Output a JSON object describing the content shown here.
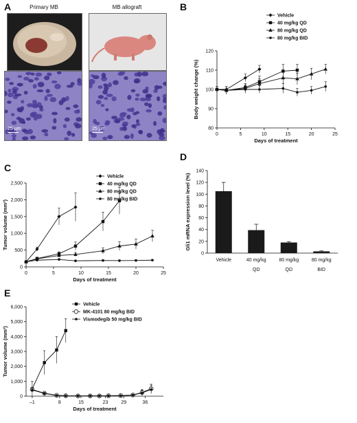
{
  "panel_labels": {
    "a": "A",
    "b": "B",
    "c": "C",
    "d": "D",
    "e": "E"
  },
  "panel_a": {
    "left_caption": "Primary MB",
    "right_caption": "MB allograft",
    "scale_left": "25 μm",
    "scale_right": "25 μm"
  },
  "colors": {
    "bg": "#ffffff",
    "ink": "#111111",
    "bars": "#1a1a1a",
    "histo": "#8e83c4"
  },
  "chart_data": [
    {
      "id": "B",
      "type": "line",
      "xlabel": "Days of treatment",
      "ylabel": "Body weight change (%)",
      "xlim": [
        0,
        25
      ],
      "ylim": [
        80,
        120
      ],
      "xticks": [
        0,
        5,
        10,
        15,
        20,
        25
      ],
      "yticks": [
        80,
        90,
        100,
        110,
        120
      ],
      "legend_position": "top-right",
      "series": [
        {
          "name": "Vehicle",
          "marker": "diamond",
          "x": [
            0,
            2,
            6,
            9
          ],
          "y": [
            100,
            100,
            106,
            110.5
          ],
          "err": [
            1.5,
            1.5,
            2,
            2
          ]
        },
        {
          "name": "40 mg/kg QD",
          "marker": "square",
          "x": [
            0,
            2,
            6,
            9,
            14,
            17
          ],
          "y": [
            100,
            99.5,
            101,
            104,
            109.5,
            110
          ],
          "err": [
            1.5,
            2,
            2,
            3,
            3.5,
            3
          ]
        },
        {
          "name": "80 mg/kg QD",
          "marker": "triangle",
          "x": [
            0,
            2,
            6,
            9,
            14,
            17,
            20,
            23
          ],
          "y": [
            100,
            99.5,
            100.5,
            103,
            106,
            105.5,
            108,
            110.5
          ],
          "err": [
            1.5,
            2,
            2,
            2.5,
            3,
            3,
            3,
            2.5
          ]
        },
        {
          "name": "80 mg/kg  BID",
          "marker": "dot",
          "x": [
            0,
            2,
            6,
            9,
            14,
            17,
            20,
            23
          ],
          "y": [
            100,
            99.5,
            100,
            100,
            100.5,
            98.5,
            99.5,
            101.5
          ],
          "err": [
            1.5,
            2,
            2,
            2,
            2.5,
            2,
            2,
            2.5
          ]
        }
      ]
    },
    {
      "id": "C",
      "type": "line",
      "xlabel": "Days of treatment",
      "ylabel": "Tumor volume (mm³)",
      "xlim": [
        0,
        25
      ],
      "ylim": [
        0,
        2500
      ],
      "xticks": [
        0,
        5,
        10,
        15,
        20,
        25
      ],
      "yticks": [
        0,
        500,
        1000,
        1500,
        2000,
        2500
      ],
      "ytick_labels": [
        "0",
        "500",
        "1,000",
        "1,500",
        "2,000",
        "2,500"
      ],
      "legend_position": "top-right",
      "series": [
        {
          "name": "Vehicle",
          "marker": "diamond",
          "x": [
            0,
            2,
            6,
            9
          ],
          "y": [
            150,
            530,
            1500,
            1780
          ],
          "err": [
            20,
            60,
            250,
            420
          ]
        },
        {
          "name": "40 mg/kg QD",
          "marker": "square",
          "x": [
            0,
            2,
            6,
            9,
            14,
            17
          ],
          "y": [
            150,
            250,
            390,
            620,
            1350,
            1970
          ],
          "err": [
            20,
            40,
            60,
            120,
            280,
            400
          ]
        },
        {
          "name": "80 mg/kg QD",
          "marker": "triangle",
          "x": [
            0,
            2,
            6,
            9,
            14,
            17,
            20,
            23
          ],
          "y": [
            150,
            240,
            340,
            370,
            480,
            620,
            680,
            920
          ],
          "err": [
            20,
            40,
            50,
            60,
            90,
            130,
            150,
            170
          ]
        },
        {
          "name": "80 mg/kg BID",
          "marker": "dot",
          "x": [
            0,
            2,
            6,
            9,
            14,
            17,
            20,
            23
          ],
          "y": [
            150,
            200,
            220,
            180,
            190,
            185,
            190,
            200
          ],
          "err": [
            20,
            30,
            30,
            20,
            20,
            20,
            20,
            20
          ]
        }
      ]
    },
    {
      "id": "D",
      "type": "bar",
      "xlabel": "",
      "ylabel": "Gli1 mRNA expression level  (%)",
      "categories": [
        "Vehicle",
        "40 mg/kg\nQD",
        "80 mg/kg\nQD",
        "80 mg/kg\nBID"
      ],
      "values": [
        105,
        39,
        18,
        3
      ],
      "err": [
        15,
        10,
        1.5,
        0.8
      ],
      "ylim": [
        0,
        140
      ],
      "yticks": [
        0,
        20,
        40,
        60,
        80,
        100,
        120,
        140
      ]
    },
    {
      "id": "E",
      "type": "line",
      "xlabel": "Days of treatment",
      "ylabel": "Tumor volume (mm³)",
      "xlim": [
        -3,
        42
      ],
      "ylim": [
        0,
        6000
      ],
      "xticks": [
        -1,
        8,
        15,
        23,
        29,
        36
      ],
      "xtick_labels": [
        "–1",
        "8",
        "15",
        "23",
        "29",
        "36"
      ],
      "yticks": [
        0,
        1000,
        2000,
        3000,
        4000,
        5000,
        6000
      ],
      "ytick_labels": [
        "0",
        "1,000",
        "2,000",
        "3,000",
        "4,000",
        "5,000",
        "6,000"
      ],
      "legend_position": "top-left",
      "series": [
        {
          "name": "Vehicle",
          "marker": "square",
          "x": [
            -1,
            3,
            7,
            10
          ],
          "y": [
            500,
            2250,
            3100,
            4400
          ],
          "err": [
            500,
            800,
            900,
            800
          ]
        },
        {
          "name": "MK-4101 80 mg/kg BID",
          "marker": "circle-open",
          "x": [
            -1,
            3,
            7,
            10,
            14,
            18,
            21,
            24,
            28,
            32,
            35,
            38
          ],
          "y": [
            450,
            200,
            60,
            30,
            20,
            20,
            20,
            30,
            40,
            80,
            250,
            500
          ],
          "err": [
            120,
            80,
            30,
            20,
            10,
            10,
            10,
            20,
            30,
            60,
            200,
            300
          ]
        },
        {
          "name": "Vismodegib 50 mg/kg BID",
          "marker": "dot",
          "x": [
            -1,
            3,
            7,
            10,
            14,
            18,
            21,
            24,
            28,
            32,
            35,
            38
          ],
          "y": [
            420,
            180,
            50,
            25,
            20,
            20,
            20,
            25,
            35,
            70,
            220,
            450
          ],
          "err": [
            120,
            80,
            30,
            20,
            10,
            10,
            10,
            20,
            30,
            60,
            180,
            280
          ]
        }
      ]
    }
  ]
}
